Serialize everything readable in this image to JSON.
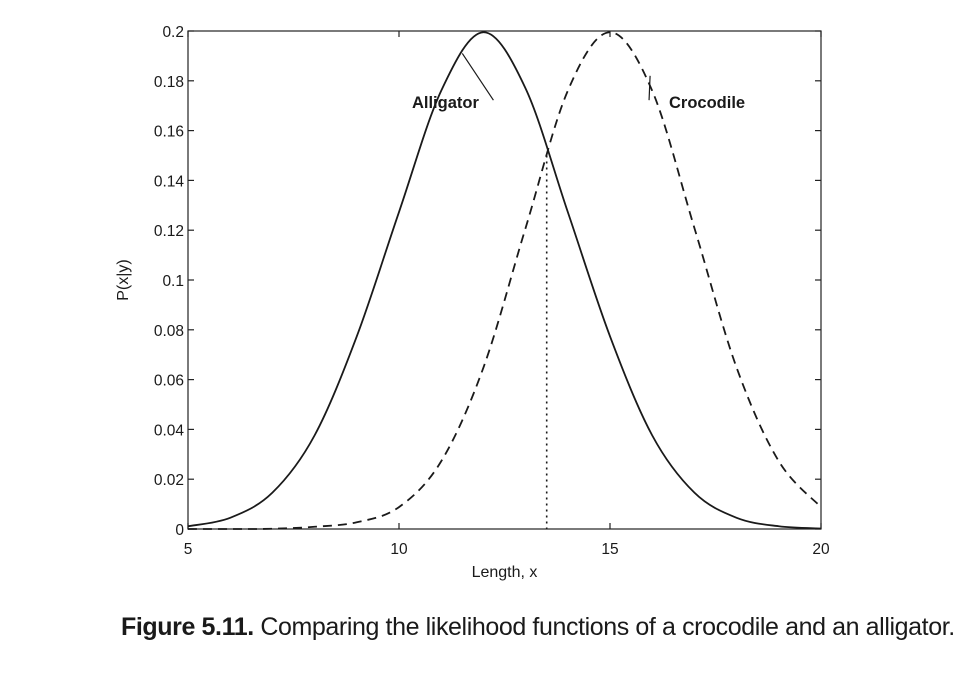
{
  "chart_data": {
    "type": "line",
    "xlabel": "Length, x",
    "ylabel": "P(x|y)",
    "xlim": [
      5,
      20
    ],
    "ylim": [
      0,
      0.2
    ],
    "xticks": [
      5,
      10,
      15,
      20
    ],
    "xtick_labels": [
      "5",
      "10",
      "15",
      "20"
    ],
    "yticks": [
      0,
      0.02,
      0.04,
      0.06,
      0.08,
      0.1,
      0.12,
      0.14,
      0.16,
      0.18,
      0.2
    ],
    "ytick_labels": [
      "0",
      "0.02",
      "0.04",
      "0.06",
      "0.08",
      "0.1",
      "0.12",
      "0.14",
      "0.16",
      "0.18",
      "0.2"
    ],
    "grid": false,
    "series": [
      {
        "name": "Alligator",
        "style": "solid",
        "x": [
          5,
          6,
          7,
          8,
          9,
          10,
          11,
          12,
          13,
          14,
          15,
          16,
          17,
          18,
          19,
          20
        ],
        "y": [
          0.0011,
          0.0045,
          0.0146,
          0.0376,
          0.0774,
          0.1273,
          0.176,
          0.1995,
          0.1769,
          0.1273,
          0.0774,
          0.0376,
          0.0146,
          0.0045,
          0.0011,
          0.0002
        ]
      },
      {
        "name": "Crocodile",
        "style": "dashed",
        "x": [
          5,
          6,
          7,
          8,
          9,
          10,
          11,
          12,
          13,
          14,
          15,
          16,
          17,
          18,
          19,
          20
        ],
        "y": [
          0.0,
          0.0,
          0.0001,
          0.0009,
          0.0027,
          0.0088,
          0.0272,
          0.0648,
          0.1209,
          0.176,
          0.1995,
          0.176,
          0.1209,
          0.0648,
          0.0272,
          0.0088
        ]
      }
    ],
    "annotations": [
      {
        "text": "Alligator",
        "x": 11.1,
        "y": 0.169
      },
      {
        "text": "Crocodile",
        "x": 17.3,
        "y": 0.169
      }
    ],
    "decision_boundary": {
      "x": 13.5,
      "y_top": 0.15,
      "style": "dotted"
    }
  },
  "caption": {
    "number": "Figure 5.11.",
    "text": "Comparing the likelihood functions of a crocodile and an alligator."
  }
}
